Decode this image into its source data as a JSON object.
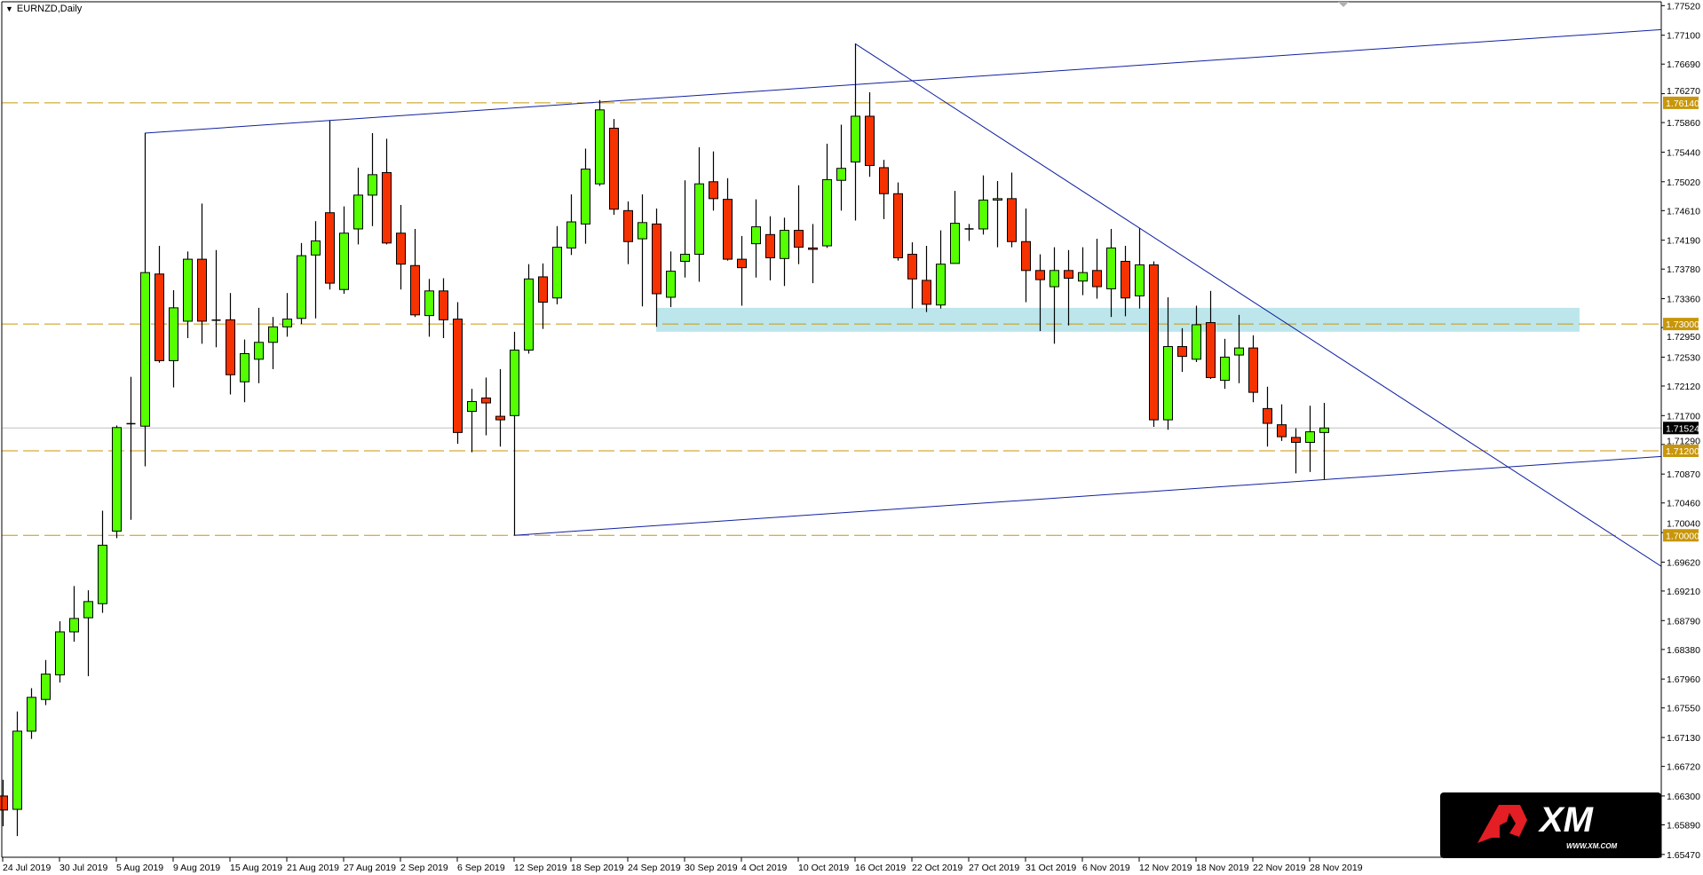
{
  "window": {
    "title": "EURNZD,Daily",
    "menu_icon": "triangle-down-icon"
  },
  "colors": {
    "bull": "#55ff00",
    "bear": "#f53200",
    "outline": "#000000",
    "trendline": "#1020a0",
    "level": "#c8960a",
    "zone": "#bde6ec",
    "price_line": "#c0c0c0",
    "current_price_bg": "#000000"
  },
  "chart_data": {
    "type": "candlestick",
    "symbol": "EURNZD",
    "timeframe": "Daily",
    "ylim": [
      1.6543,
      1.776
    ],
    "price_ticks": [
      "1.77520",
      "1.77100",
      "1.76690",
      "1.76270",
      "1.75860",
      "1.75440",
      "1.75020",
      "1.74610",
      "1.74190",
      "1.73780",
      "1.73360",
      "1.72950",
      "1.72530",
      "1.72120",
      "1.71700",
      "1.71290",
      "1.70870",
      "1.70460",
      "1.70040",
      "1.69620",
      "1.69210",
      "1.68790",
      "1.68380",
      "1.67960",
      "1.67550",
      "1.67130",
      "1.66720",
      "1.66300",
      "1.65890",
      "1.65470"
    ],
    "date_labels": [
      "24 Jul 2019",
      "30 Jul 2019",
      "5 Aug 2019",
      "9 Aug 2019",
      "15 Aug 2019",
      "21 Aug 2019",
      "27 Aug 2019",
      "2 Sep 2019",
      "6 Sep 2019",
      "12 Sep 2019",
      "18 Sep 2019",
      "24 Sep 2019",
      "30 Sep 2019",
      "4 Oct 2019",
      "10 Oct 2019",
      "16 Oct 2019",
      "22 Oct 2019",
      "27 Oct 2019",
      "31 Oct 2019",
      "6 Nov 2019",
      "12 Nov 2019",
      "18 Nov 2019",
      "22 Nov 2019",
      "28 Nov 2019"
    ],
    "date_label_every_n_bars": 4,
    "ohlc": [
      [
        1.663,
        1.6653,
        1.6587,
        1.661
      ],
      [
        1.6611,
        1.675,
        1.6573,
        1.6722
      ],
      [
        1.6722,
        1.6783,
        1.6711,
        1.677
      ],
      [
        1.6767,
        1.6823,
        1.6759,
        1.6803
      ],
      [
        1.6802,
        1.6878,
        1.6791,
        1.6863
      ],
      [
        1.6863,
        1.6928,
        1.6849,
        1.6882
      ],
      [
        1.6883,
        1.6922,
        1.68,
        1.6906
      ],
      [
        1.6903,
        1.7035,
        1.689,
        1.6986
      ],
      [
        1.7006,
        1.7156,
        1.6996,
        1.7153
      ],
      [
        1.7158,
        1.7225,
        1.7022,
        1.7159
      ],
      [
        1.7155,
        1.7571,
        1.7098,
        1.7373
      ],
      [
        1.7371,
        1.7411,
        1.7245,
        1.7248
      ],
      [
        1.7248,
        1.7348,
        1.721,
        1.7323
      ],
      [
        1.7304,
        1.7403,
        1.728,
        1.7392
      ],
      [
        1.7392,
        1.7471,
        1.7272,
        1.7304
      ],
      [
        1.7305,
        1.7405,
        1.7267,
        1.7306
      ],
      [
        1.7306,
        1.7344,
        1.72,
        1.7228
      ],
      [
        1.7218,
        1.7278,
        1.7189,
        1.7258
      ],
      [
        1.725,
        1.7323,
        1.7216,
        1.7274
      ],
      [
        1.7274,
        1.731,
        1.7236,
        1.7296
      ],
      [
        1.7296,
        1.7344,
        1.7282,
        1.7307
      ],
      [
        1.7308,
        1.7415,
        1.73,
        1.7397
      ],
      [
        1.7398,
        1.7446,
        1.7308,
        1.7418
      ],
      [
        1.7458,
        1.7589,
        1.7349,
        1.7358
      ],
      [
        1.7349,
        1.7467,
        1.7343,
        1.7429
      ],
      [
        1.7435,
        1.7522,
        1.7413,
        1.7483
      ],
      [
        1.7483,
        1.7571,
        1.7439,
        1.7512
      ],
      [
        1.7515,
        1.7563,
        1.7413,
        1.7415
      ],
      [
        1.7429,
        1.7469,
        1.7349,
        1.7385
      ],
      [
        1.7383,
        1.7435,
        1.731,
        1.7313
      ],
      [
        1.7312,
        1.7364,
        1.7282,
        1.7347
      ],
      [
        1.7347,
        1.7365,
        1.728,
        1.7306
      ],
      [
        1.7307,
        1.7331,
        1.713,
        1.7146
      ],
      [
        1.7176,
        1.7208,
        1.7118,
        1.719
      ],
      [
        1.7195,
        1.7224,
        1.7142,
        1.7188
      ],
      [
        1.7169,
        1.7236,
        1.7126,
        1.7164
      ],
      [
        1.717,
        1.7289,
        1.7,
        1.7263
      ],
      [
        1.7263,
        1.7385,
        1.7258,
        1.7364
      ],
      [
        1.7367,
        1.7386,
        1.7293,
        1.7331
      ],
      [
        1.7337,
        1.7439,
        1.7328,
        1.7409
      ],
      [
        1.7408,
        1.7484,
        1.7398,
        1.7445
      ],
      [
        1.7442,
        1.7549,
        1.7414,
        1.752
      ],
      [
        1.7499,
        1.7618,
        1.7496,
        1.7604
      ],
      [
        1.7578,
        1.7591,
        1.7455,
        1.7463
      ],
      [
        1.7461,
        1.7474,
        1.7385,
        1.7417
      ],
      [
        1.7421,
        1.7484,
        1.7325,
        1.7444
      ],
      [
        1.7442,
        1.7464,
        1.7296,
        1.7343
      ],
      [
        1.7338,
        1.7403,
        1.7324,
        1.7375
      ],
      [
        1.7389,
        1.7504,
        1.7366,
        1.7399
      ],
      [
        1.7399,
        1.7551,
        1.736,
        1.7499
      ],
      [
        1.7502,
        1.7545,
        1.7461,
        1.7478
      ],
      [
        1.7477,
        1.7507,
        1.739,
        1.7392
      ],
      [
        1.7392,
        1.7425,
        1.7326,
        1.738
      ],
      [
        1.7414,
        1.7477,
        1.7366,
        1.7438
      ],
      [
        1.7427,
        1.7453,
        1.7362,
        1.7394
      ],
      [
        1.7393,
        1.7451,
        1.7354,
        1.7433
      ],
      [
        1.7433,
        1.7497,
        1.7385,
        1.7409
      ],
      [
        1.7408,
        1.7442,
        1.7358,
        1.7406
      ],
      [
        1.7411,
        1.7556,
        1.7408,
        1.7505
      ],
      [
        1.7504,
        1.7583,
        1.7461,
        1.7521
      ],
      [
        1.753,
        1.7698,
        1.7447,
        1.7595
      ],
      [
        1.7595,
        1.7629,
        1.7509,
        1.7525
      ],
      [
        1.7522,
        1.7533,
        1.7449,
        1.7485
      ],
      [
        1.7485,
        1.7501,
        1.739,
        1.7394
      ],
      [
        1.7399,
        1.7416,
        1.7322,
        1.7364
      ],
      [
        1.7362,
        1.7411,
        1.7317,
        1.7328
      ],
      [
        1.7327,
        1.7433,
        1.7322,
        1.7385
      ],
      [
        1.7386,
        1.7489,
        1.7386,
        1.7443
      ],
      [
        1.7435,
        1.7442,
        1.7418,
        1.7435
      ],
      [
        1.7435,
        1.7511,
        1.7427,
        1.7476
      ],
      [
        1.7476,
        1.7503,
        1.7409,
        1.7478
      ],
      [
        1.7478,
        1.7515,
        1.7409,
        1.7417
      ],
      [
        1.7417,
        1.7464,
        1.7331,
        1.7376
      ],
      [
        1.7376,
        1.7399,
        1.729,
        1.7363
      ],
      [
        1.7353,
        1.7409,
        1.7272,
        1.7376
      ],
      [
        1.7376,
        1.7405,
        1.7298,
        1.7365
      ],
      [
        1.7361,
        1.7409,
        1.7341,
        1.7373
      ],
      [
        1.7376,
        1.7421,
        1.7336,
        1.7353
      ],
      [
        1.735,
        1.7435,
        1.731,
        1.7408
      ],
      [
        1.7389,
        1.7411,
        1.7311,
        1.7337
      ],
      [
        1.734,
        1.7436,
        1.7322,
        1.7384
      ],
      [
        1.7384,
        1.7389,
        1.7154,
        1.7164
      ],
      [
        1.7164,
        1.7338,
        1.715,
        1.7268
      ],
      [
        1.7268,
        1.7294,
        1.7232,
        1.7254
      ],
      [
        1.725,
        1.7326,
        1.7246,
        1.7299
      ],
      [
        1.7302,
        1.7347,
        1.7222,
        1.7224
      ],
      [
        1.722,
        1.7279,
        1.7208,
        1.7253
      ],
      [
        1.7256,
        1.7313,
        1.7216,
        1.7266
      ],
      [
        1.7266,
        1.7284,
        1.7189,
        1.7203
      ],
      [
        1.718,
        1.7211,
        1.7126,
        1.7159
      ],
      [
        1.7157,
        1.7186,
        1.7134,
        1.714
      ],
      [
        1.7139,
        1.7152,
        1.7088,
        1.7132
      ],
      [
        1.7132,
        1.7184,
        1.709,
        1.7147
      ],
      [
        1.7146,
        1.7188,
        1.7079,
        1.71524
      ]
    ],
    "horizontal_levels": [
      {
        "price": 1.7614,
        "label": "1.76140"
      },
      {
        "price": 1.73,
        "label": "1.73000"
      },
      {
        "price": 1.712,
        "label": "1.71200"
      },
      {
        "price": 1.7,
        "label": "1.70000"
      }
    ],
    "current_price": {
      "price": 1.71524,
      "label": "1.71524"
    },
    "trendlines": [
      {
        "from": [
          10,
          1.7571
        ],
        "to": [
          116.75,
          1.7718
        ]
      },
      {
        "from": [
          36,
          1.7
        ],
        "to": [
          116.75,
          1.7112
        ]
      },
      {
        "from": [
          60,
          1.7698
        ],
        "to": [
          116.75,
          1.6956
        ]
      }
    ],
    "zone": {
      "from_bar": 46,
      "to_bar": 111,
      "top": 1.7323,
      "bottom": 1.7289
    }
  },
  "logo": {
    "text": "XM",
    "url_text": "WWW.XM.COM"
  }
}
